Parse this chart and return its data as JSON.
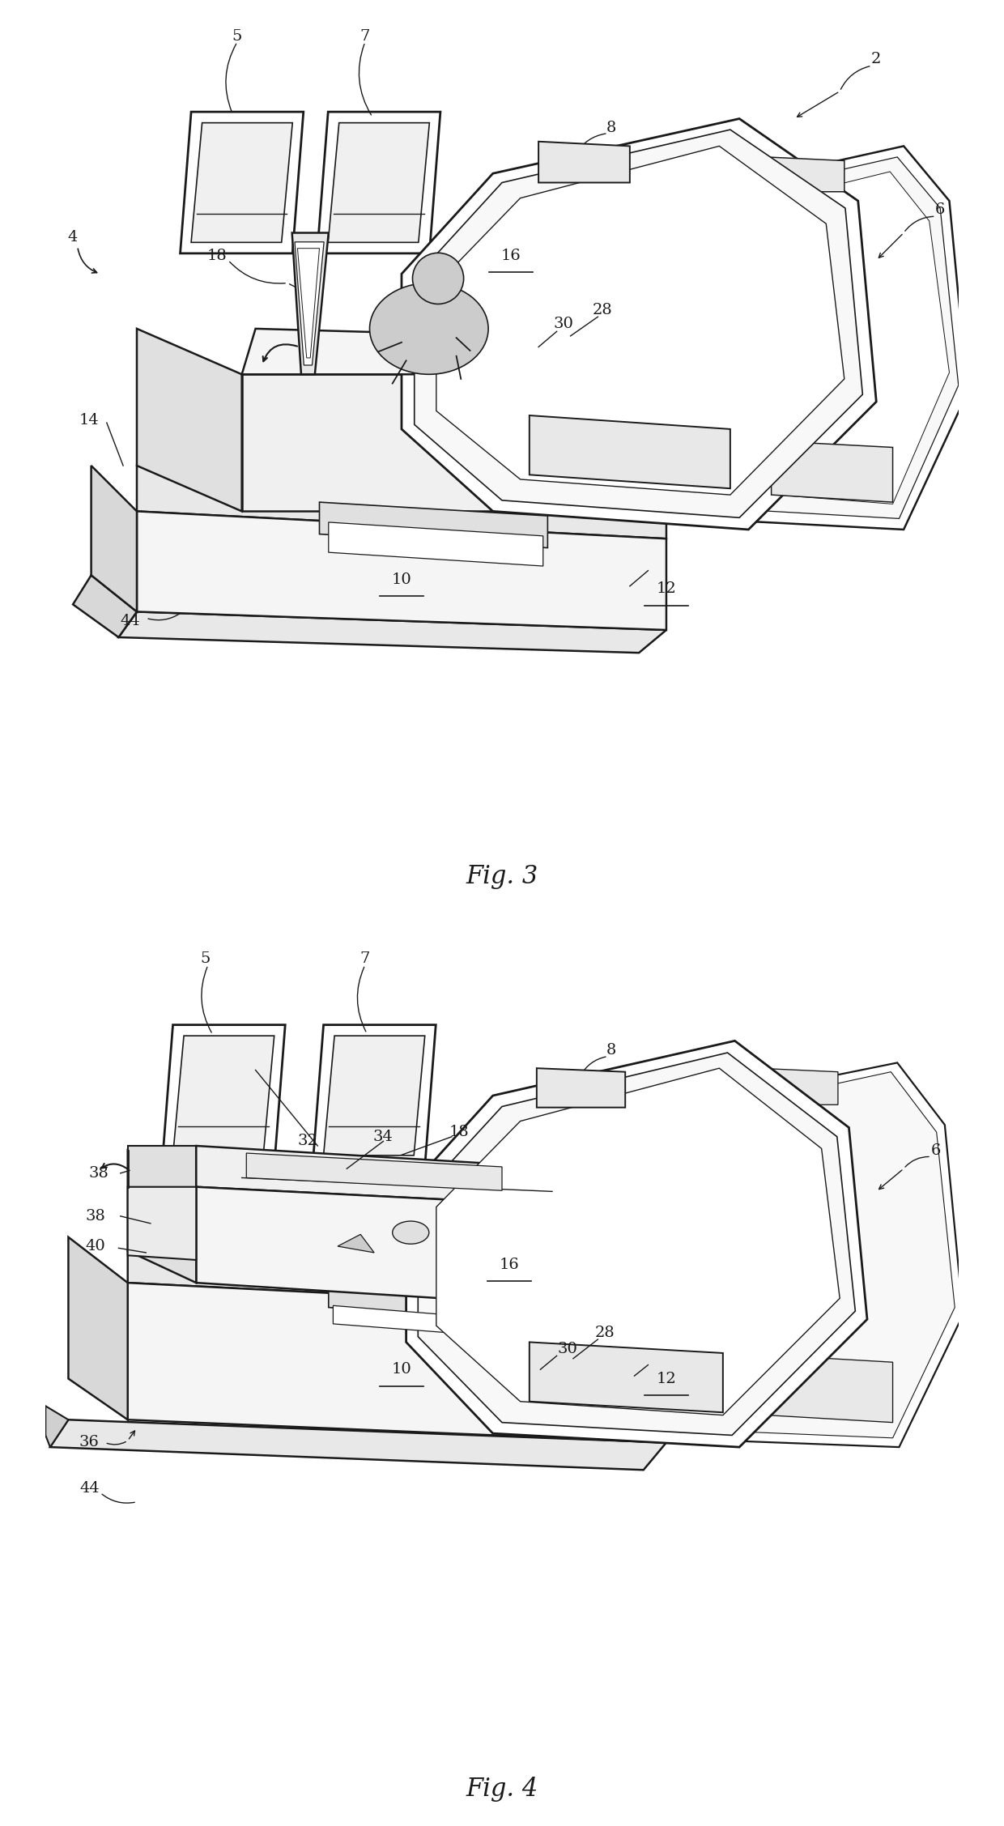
{
  "fig_width": 12.4,
  "fig_height": 22.55,
  "bg_color": "#ffffff",
  "lc": "#1a1a1a",
  "fig3_title": "Fig. 3",
  "fig4_title": "Fig. 4",
  "fontsize_label": 14,
  "fontsize_fig": 22
}
